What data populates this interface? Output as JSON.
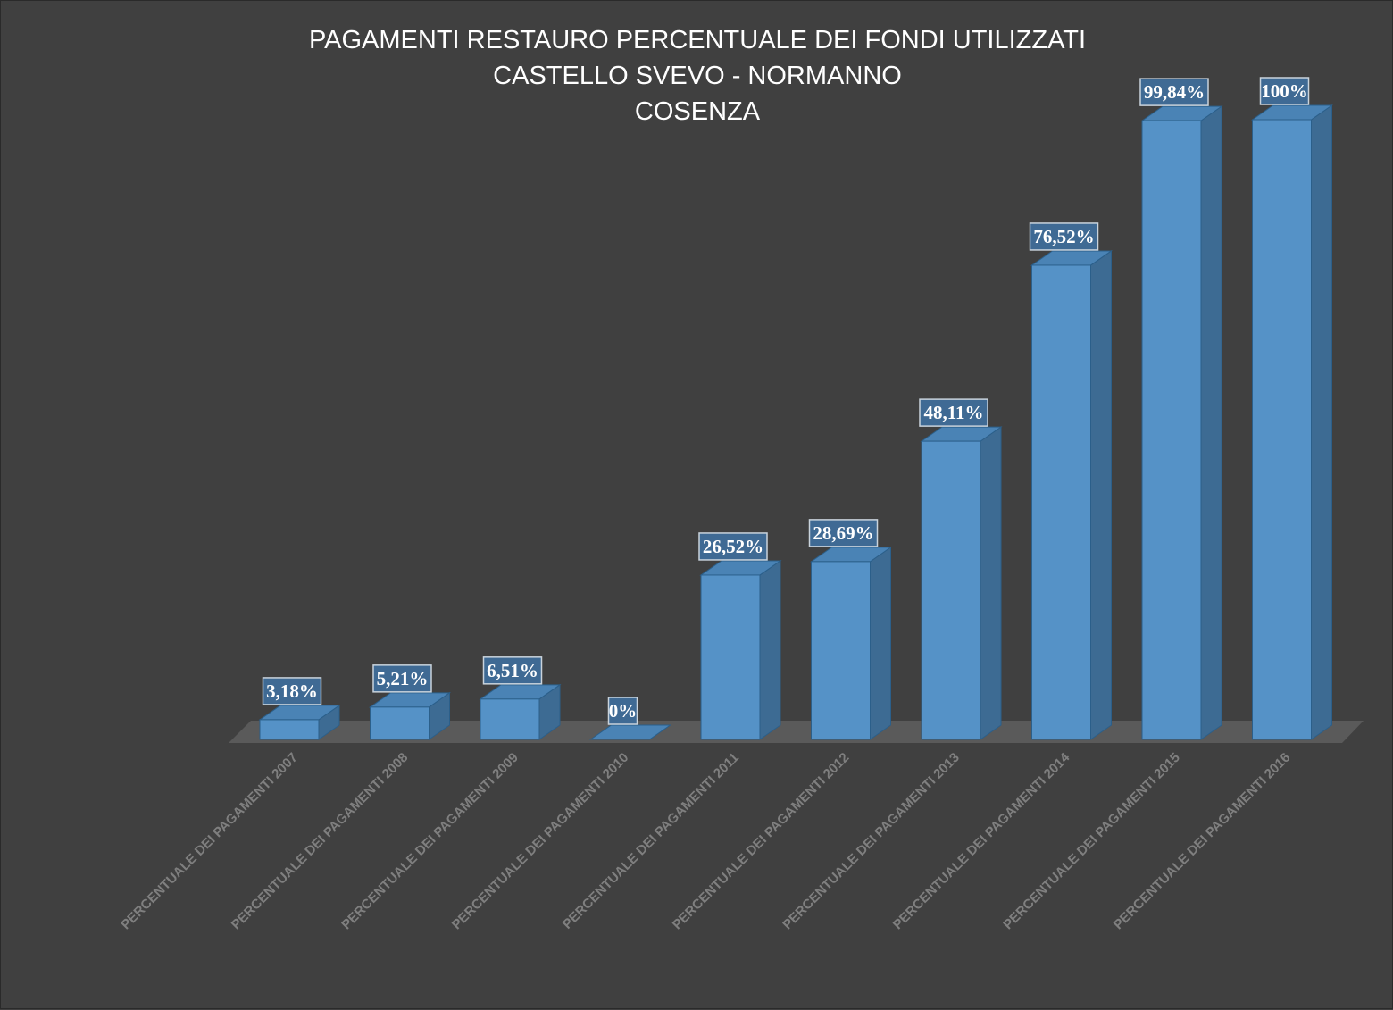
{
  "chart_data": {
    "type": "bar",
    "title": "PAGAMENTI RESTAURO PERCENTUALE DEI FONDI UTILIZZATI\nCASTELLO SVEVO - NORMANNO\nCOSENZA",
    "categories": [
      "PERCENTUALE DEI PAGAMENTI 2007",
      "PERCENTUALE DEI PAGAMENTI 2008",
      "PERCENTUALE DEI PAGAMENTI 2009",
      "PERCENTUALE DEI PAGAMENTI 2010",
      "PERCENTUALE DEI PAGAMENTI 2011",
      "PERCENTUALE DEI PAGAMENTI 2012",
      "PERCENTUALE DEI PAGAMENTI 2013",
      "PERCENTUALE DEI PAGAMENTI 2014",
      "PERCENTUALE DEI PAGAMENTI 2015",
      "PERCENTUALE DEI PAGAMENTI 2016"
    ],
    "values": [
      3.18,
      5.21,
      6.51,
      0,
      26.52,
      28.69,
      48.11,
      76.52,
      99.84,
      100
    ],
    "data_labels": [
      "3,18%",
      "5,21%",
      "6,51%",
      "0%",
      "26,52%",
      "28,69%",
      "48,11%",
      "76,52%",
      "99,84%",
      "100%"
    ],
    "xlabel": "",
    "ylabel": "",
    "ylim": [
      0,
      100
    ],
    "grid": false,
    "legend": "none",
    "colors": {
      "background": "#404040",
      "bar_front": "#5592c7",
      "bar_side": "#3d6b93",
      "bar_top": "#4a83b5",
      "bar_edge": "#2b5f8a",
      "floor": "#5a5a5a",
      "title": "#ffffff",
      "tick_label": "#7f7f7f",
      "data_label_bg": "#3f6a94",
      "data_label_border": "#c9d3dc"
    }
  }
}
